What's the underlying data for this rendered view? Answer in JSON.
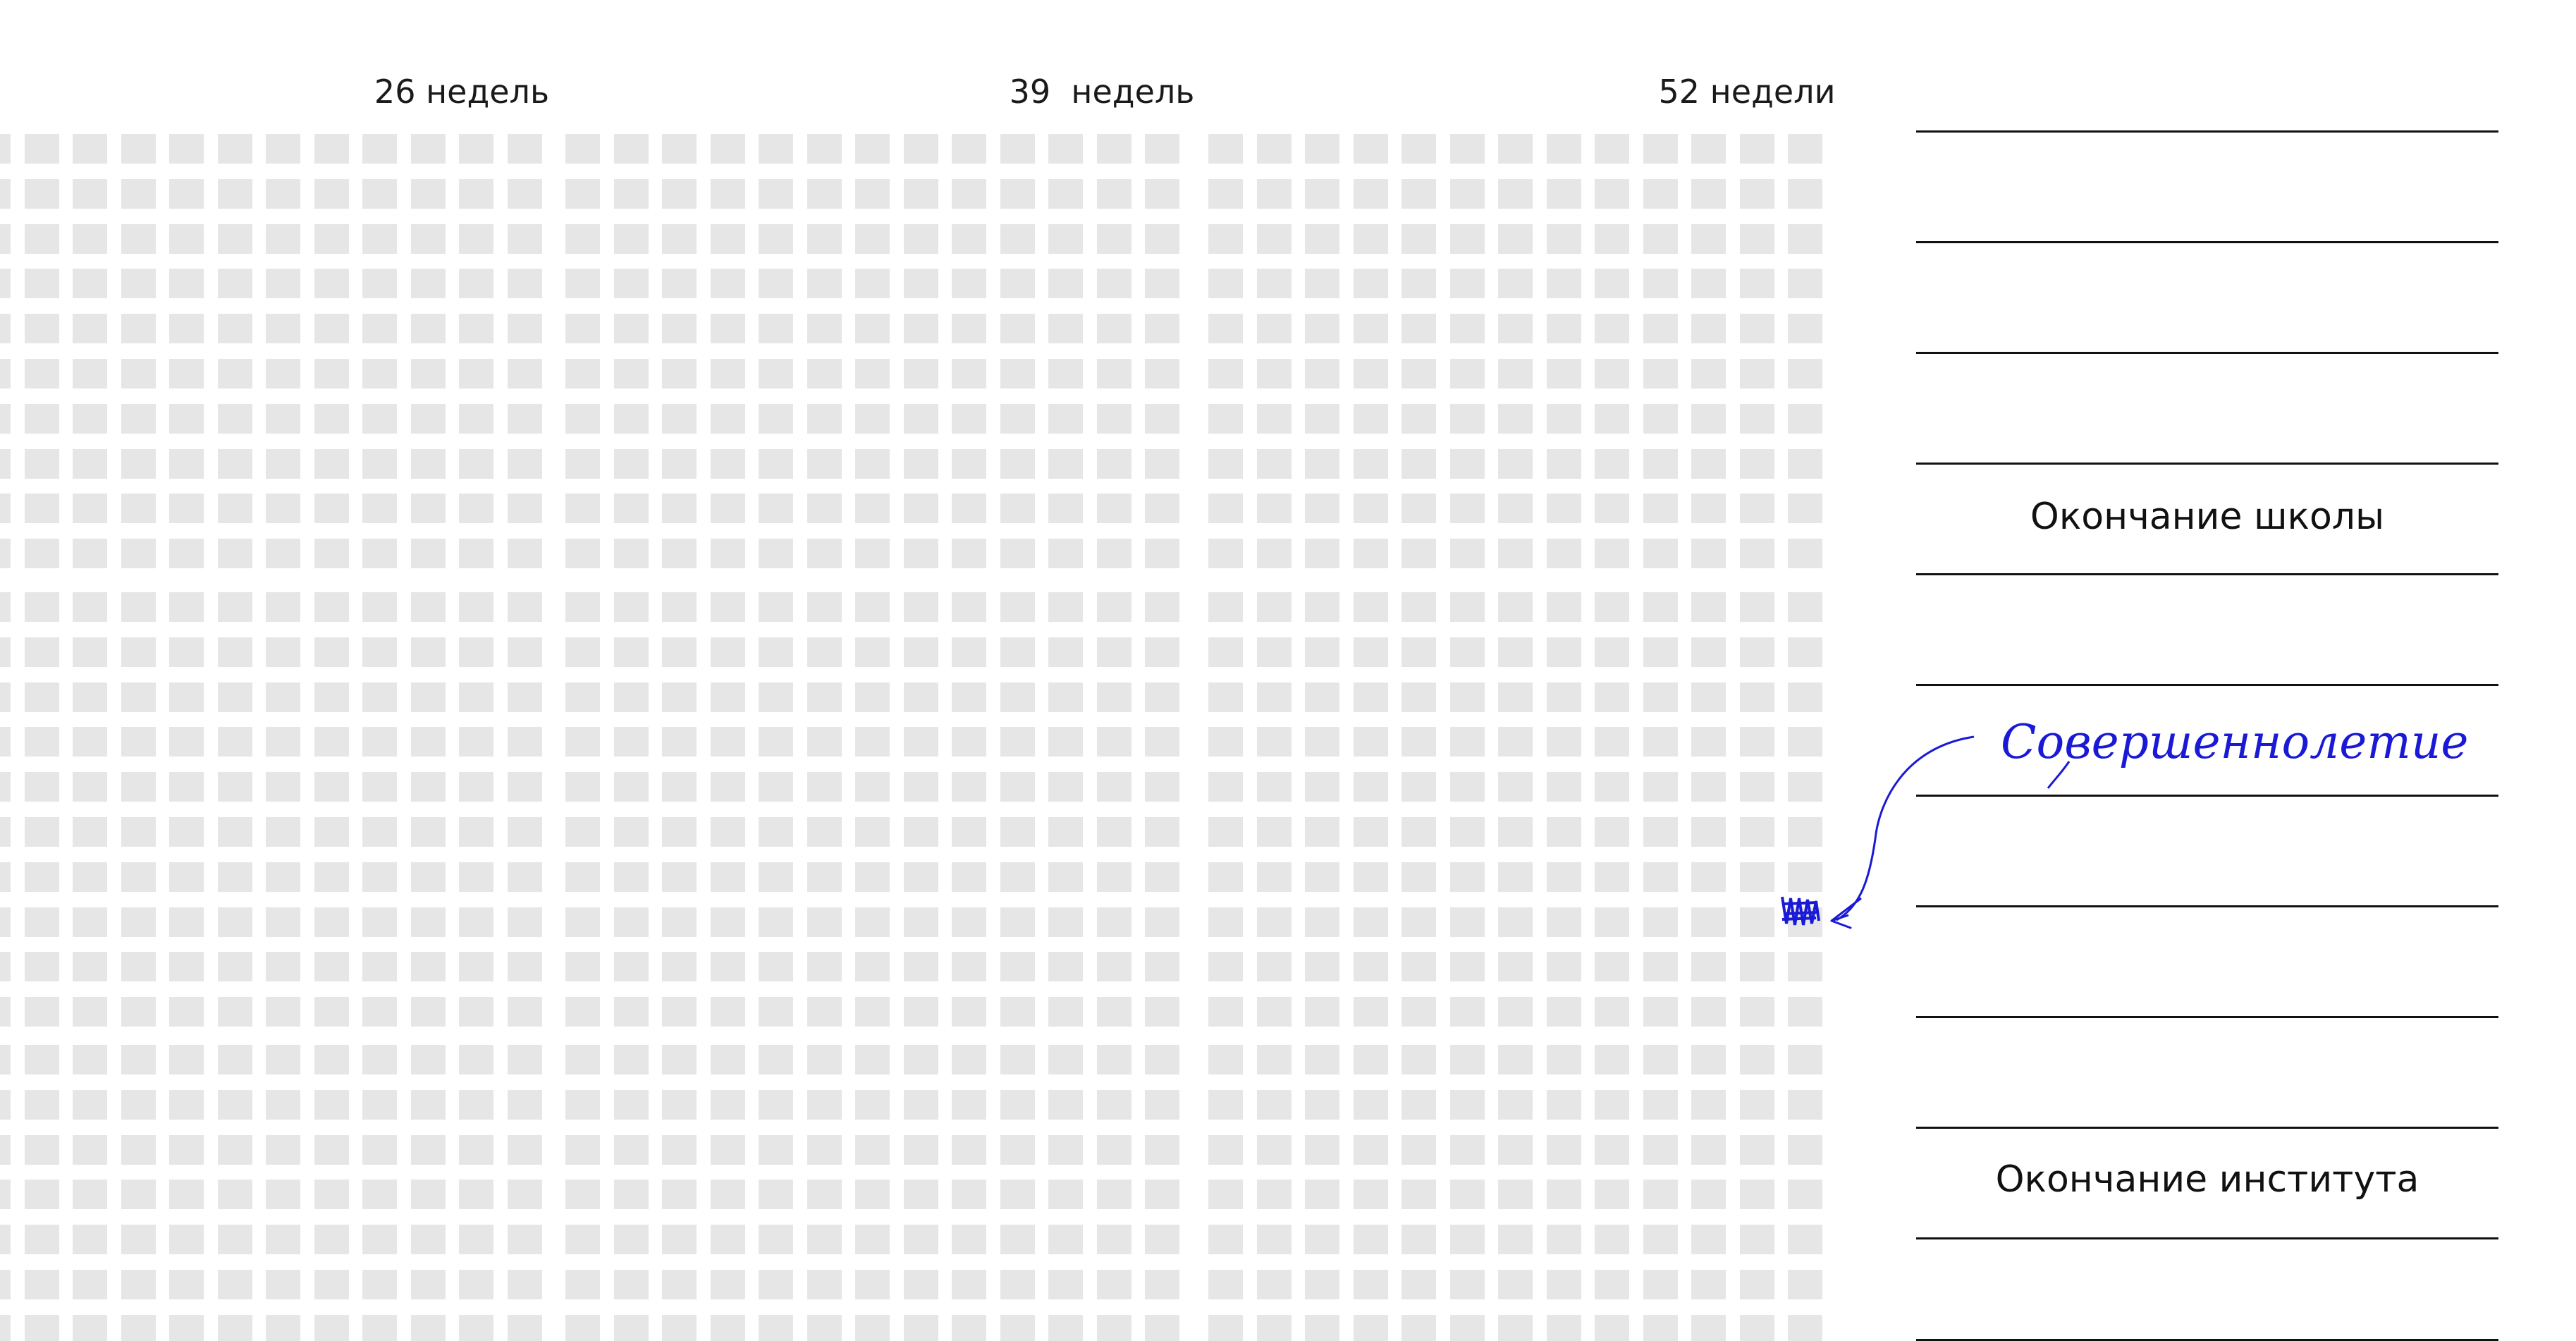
{
  "week_labels": [
    "26 недель",
    "39  недель",
    "52 недели"
  ],
  "milestones": {
    "school": "Окончание школы",
    "adulthood": "Совершеннолетие",
    "institute": "Окончание института"
  },
  "colors": {
    "cell": "#e6e6e6",
    "ink": "#1a1ad6",
    "line": "#111111"
  }
}
